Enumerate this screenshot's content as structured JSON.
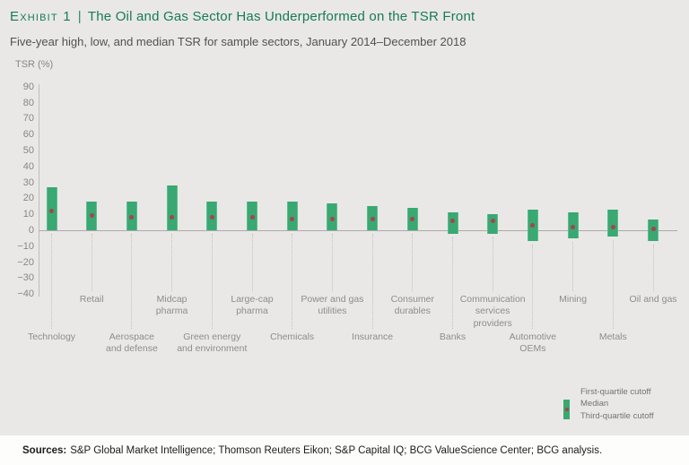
{
  "header": {
    "exhibit_label": "Exhibit 1",
    "separator": "|",
    "title": "The Oil and Gas Sector Has Underperformed on the TSR Front",
    "subtitle": "Five-year high, low, and median TSR for sample sectors, January 2014–December 2018"
  },
  "chart_data": {
    "type": "bar",
    "subtype": "floating-quartile-range-bars-with-median-dot",
    "title": "Five-year high, low, and median TSR for sample sectors, January 2014–December 2018",
    "ylabel": "TSR (%)",
    "xlabel": "",
    "ylim": [
      -40,
      90
    ],
    "yticks": [
      90,
      80,
      70,
      60,
      50,
      40,
      30,
      20,
      10,
      0,
      -10,
      -20,
      -30,
      -40
    ],
    "grid": false,
    "legend_position": "bottom-right",
    "categories": [
      "Technology",
      "Retail",
      "Aerospace and defense",
      "Midcap pharma",
      "Green energy and environment",
      "Large-cap pharma",
      "Chemicals",
      "Power and gas utilities",
      "Insurance",
      "Consumer durables",
      "Banks",
      "Communication services providers",
      "Automotive OEMs",
      "Mining",
      "Metals",
      "Oil and gas"
    ],
    "category_label_lines": [
      [
        "Technology"
      ],
      [
        "Retail"
      ],
      [
        "Aerospace",
        "and defense"
      ],
      [
        "Midcap",
        "pharma"
      ],
      [
        "Green energy",
        "and environment"
      ],
      [
        "Large-cap",
        "pharma"
      ],
      [
        "Chemicals"
      ],
      [
        "Power and gas",
        "utilities"
      ],
      [
        "Insurance"
      ],
      [
        "Consumer",
        "durables"
      ],
      [
        "Banks"
      ],
      [
        "Communication",
        "services",
        "providers"
      ],
      [
        "Automotive",
        "OEMs"
      ],
      [
        "Mining"
      ],
      [
        "Metals"
      ],
      [
        "Oil and gas"
      ]
    ],
    "category_label_rows": [
      2,
      1,
      2,
      1,
      2,
      1,
      2,
      1,
      2,
      1,
      2,
      1,
      2,
      1,
      2,
      1
    ],
    "series": [
      {
        "name": "First-quartile cutoff",
        "values": [
          27,
          18,
          18,
          28,
          18,
          18,
          18,
          17,
          15,
          14,
          11,
          10,
          13,
          11,
          13,
          7
        ]
      },
      {
        "name": "Median",
        "values": [
          12,
          9,
          8,
          8,
          8,
          8,
          7,
          7,
          7,
          7,
          6,
          6,
          3,
          2,
          2,
          1
        ]
      },
      {
        "name": "Third-quartile cutoff",
        "values": [
          0,
          0,
          0,
          0,
          0,
          0,
          0,
          0,
          0,
          0,
          -2,
          -2,
          -7,
          -5,
          -4,
          -7
        ]
      }
    ]
  },
  "colors": {
    "title_green": "#177a5b",
    "bar_green": "#39a872",
    "median_red": "#a8434b",
    "background": "#e9e8e6",
    "sources_background": "#fdfdfc",
    "label_gray": "#8d8d8a"
  },
  "footer": {
    "sources_label": "Sources:",
    "sources_text": "S&P Global Market Intelligence; Thomson Reuters Eikon; S&P Capital IQ; BCG ValueScience Center; BCG analysis."
  }
}
